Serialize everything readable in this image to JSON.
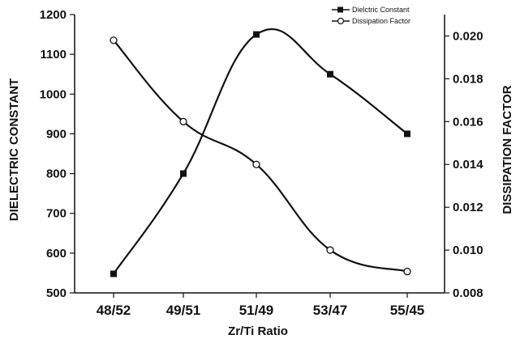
{
  "chart_data": {
    "type": "line",
    "categories": [
      "48/52",
      "49/51",
      "51/49",
      "53/47",
      "55/45"
    ],
    "xlabel": "Zr/Ti Ratio",
    "ylabel_left": "DIELECTRIC CONSTANT",
    "ylabel_right": "DISSIPATION  FACTOR",
    "ylim_left": [
      500,
      1200
    ],
    "ylim_right": [
      0.008,
      0.021
    ],
    "yticks_left": [
      "500",
      "600",
      "700",
      "800",
      "900",
      "1000",
      "1100",
      "1200"
    ],
    "yticks_right": [
      "0.008",
      "0.010",
      "0.012",
      "0.014",
      "0.016",
      "0.018",
      "0.020"
    ],
    "grid": false,
    "legend_position": "top-right",
    "series": [
      {
        "name": "Dielctric Constant",
        "axis": "left",
        "marker": "filled-square",
        "values": [
          548,
          800,
          1150,
          1050,
          900
        ]
      },
      {
        "name": "Dissipation Factor",
        "axis": "right",
        "marker": "open-circle",
        "values": [
          0.0198,
          0.016,
          0.014,
          0.01,
          0.009
        ]
      }
    ]
  }
}
